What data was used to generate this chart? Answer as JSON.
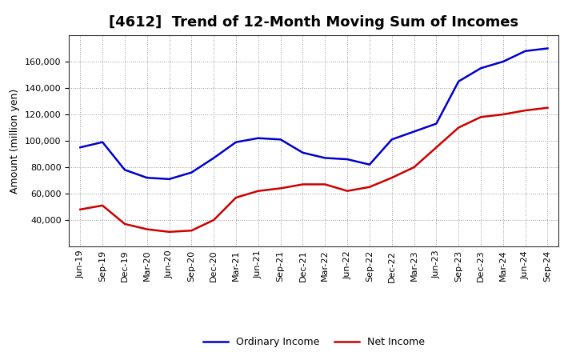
{
  "title": "[4612]  Trend of 12-Month Moving Sum of Incomes",
  "ylabel": "Amount (million yen)",
  "x_labels": [
    "Jun-19",
    "Sep-19",
    "Dec-19",
    "Mar-20",
    "Jun-20",
    "Sep-20",
    "Dec-20",
    "Mar-21",
    "Jun-21",
    "Sep-21",
    "Dec-21",
    "Mar-22",
    "Jun-22",
    "Sep-22",
    "Dec-22",
    "Mar-23",
    "Jun-23",
    "Sep-23",
    "Dec-23",
    "Mar-24",
    "Jun-24",
    "Sep-24"
  ],
  "ordinary_income": [
    95000,
    99000,
    78000,
    72000,
    71000,
    76000,
    87000,
    99000,
    102000,
    101000,
    91000,
    87000,
    86000,
    82000,
    101000,
    107000,
    113000,
    145000,
    155000,
    160000,
    168000,
    170000
  ],
  "net_income": [
    48000,
    51000,
    37000,
    33000,
    31000,
    32000,
    40000,
    57000,
    62000,
    64000,
    67000,
    67000,
    62000,
    65000,
    72000,
    80000,
    95000,
    110000,
    118000,
    120000,
    123000,
    125000
  ],
  "ordinary_color": "#0000cc",
  "net_color": "#cc0000",
  "ylim_min": 20000,
  "ylim_max": 180000,
  "yticks": [
    40000,
    60000,
    80000,
    100000,
    120000,
    140000,
    160000
  ],
  "background_color": "#ffffff",
  "grid_color": "#999999",
  "title_fontsize": 13,
  "axis_fontsize": 9,
  "tick_fontsize": 8,
  "legend_labels": [
    "Ordinary Income",
    "Net Income"
  ],
  "line_width": 1.8
}
